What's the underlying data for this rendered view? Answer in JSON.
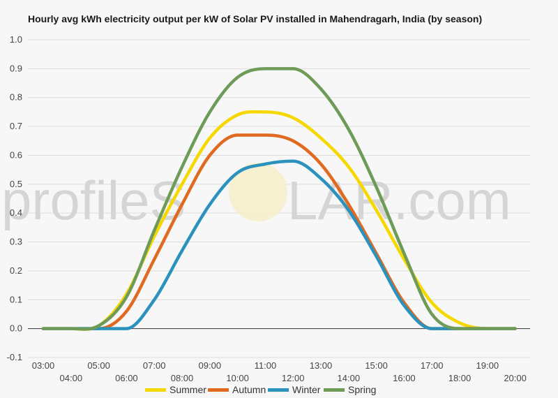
{
  "chart_data": {
    "type": "line",
    "title": "Hourly avg kWh electricity output per kW of Solar PV installed in Mahendragarh, India (by season)",
    "xlabel": "",
    "ylabel": "",
    "x": [
      "03:00",
      "04:00",
      "05:00",
      "06:00",
      "07:00",
      "08:00",
      "09:00",
      "10:00",
      "11:00",
      "12:00",
      "13:00",
      "14:00",
      "15:00",
      "16:00",
      "17:00",
      "18:00",
      "19:00",
      "20:00"
    ],
    "ylim": [
      -0.1,
      1.0
    ],
    "yticks": [
      "-0.1",
      "0.0",
      "0.1",
      "0.2",
      "0.3",
      "0.4",
      "0.5",
      "0.6",
      "0.7",
      "0.8",
      "0.9",
      "1.0"
    ],
    "grid": true,
    "legend_position": "bottom",
    "series": [
      {
        "name": "Summer",
        "color": "#f5d800",
        "values": [
          0.0,
          0.0,
          0.01,
          0.12,
          0.32,
          0.5,
          0.66,
          0.74,
          0.75,
          0.73,
          0.66,
          0.56,
          0.41,
          0.24,
          0.09,
          0.02,
          0.0,
          0.0
        ]
      },
      {
        "name": "Autumn",
        "color": "#e06a20",
        "values": [
          0.0,
          0.0,
          0.0,
          0.06,
          0.24,
          0.43,
          0.6,
          0.67,
          0.67,
          0.65,
          0.57,
          0.43,
          0.26,
          0.09,
          0.0,
          0.0,
          0.0,
          0.0
        ]
      },
      {
        "name": "Winter",
        "color": "#2b92bd",
        "values": [
          0.0,
          0.0,
          0.0,
          0.0,
          0.1,
          0.27,
          0.43,
          0.54,
          0.57,
          0.58,
          0.52,
          0.41,
          0.25,
          0.08,
          0.0,
          0.0,
          0.0,
          0.0
        ]
      },
      {
        "name": "Spring",
        "color": "#6e9b58",
        "values": [
          0.0,
          0.0,
          0.01,
          0.11,
          0.34,
          0.56,
          0.75,
          0.87,
          0.9,
          0.9,
          0.83,
          0.69,
          0.49,
          0.26,
          0.05,
          0.0,
          0.0,
          0.0
        ]
      }
    ]
  },
  "watermark": {
    "left": "profileS",
    "right": "LAR.com"
  }
}
